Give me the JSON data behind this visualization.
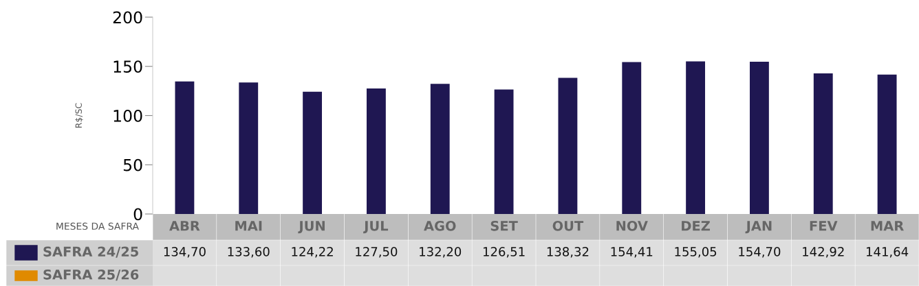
{
  "chart_data": {
    "type": "bar",
    "ylabel": "R$/SC",
    "xlabel": "MESES DA SAFRA",
    "categories": [
      "ABR",
      "MAI",
      "JUN",
      "JUL",
      "AGO",
      "SET",
      "OUT",
      "NOV",
      "DEZ",
      "JAN",
      "FEV",
      "MAR"
    ],
    "series": [
      {
        "name": "SAFRA 24/25",
        "color": "#1f1752",
        "values": [
          134.7,
          133.6,
          124.22,
          127.5,
          132.2,
          126.51,
          138.32,
          154.41,
          155.05,
          154.7,
          142.92,
          141.64
        ],
        "value_labels": [
          "134,70",
          "133,60",
          "124,22",
          "127,50",
          "132,20",
          "126,51",
          "138,32",
          "154,41",
          "155,05",
          "154,70",
          "142,92",
          "141,64"
        ]
      },
      {
        "name": "SAFRA 25/26",
        "color": "#e08a00",
        "values": [
          null,
          null,
          null,
          null,
          null,
          null,
          null,
          null,
          null,
          null,
          null,
          null
        ]
      }
    ],
    "ylim": [
      0,
      200
    ],
    "yticks": [
      0,
      50,
      100,
      150,
      200
    ],
    "grid": false,
    "legend": "bottom"
  }
}
